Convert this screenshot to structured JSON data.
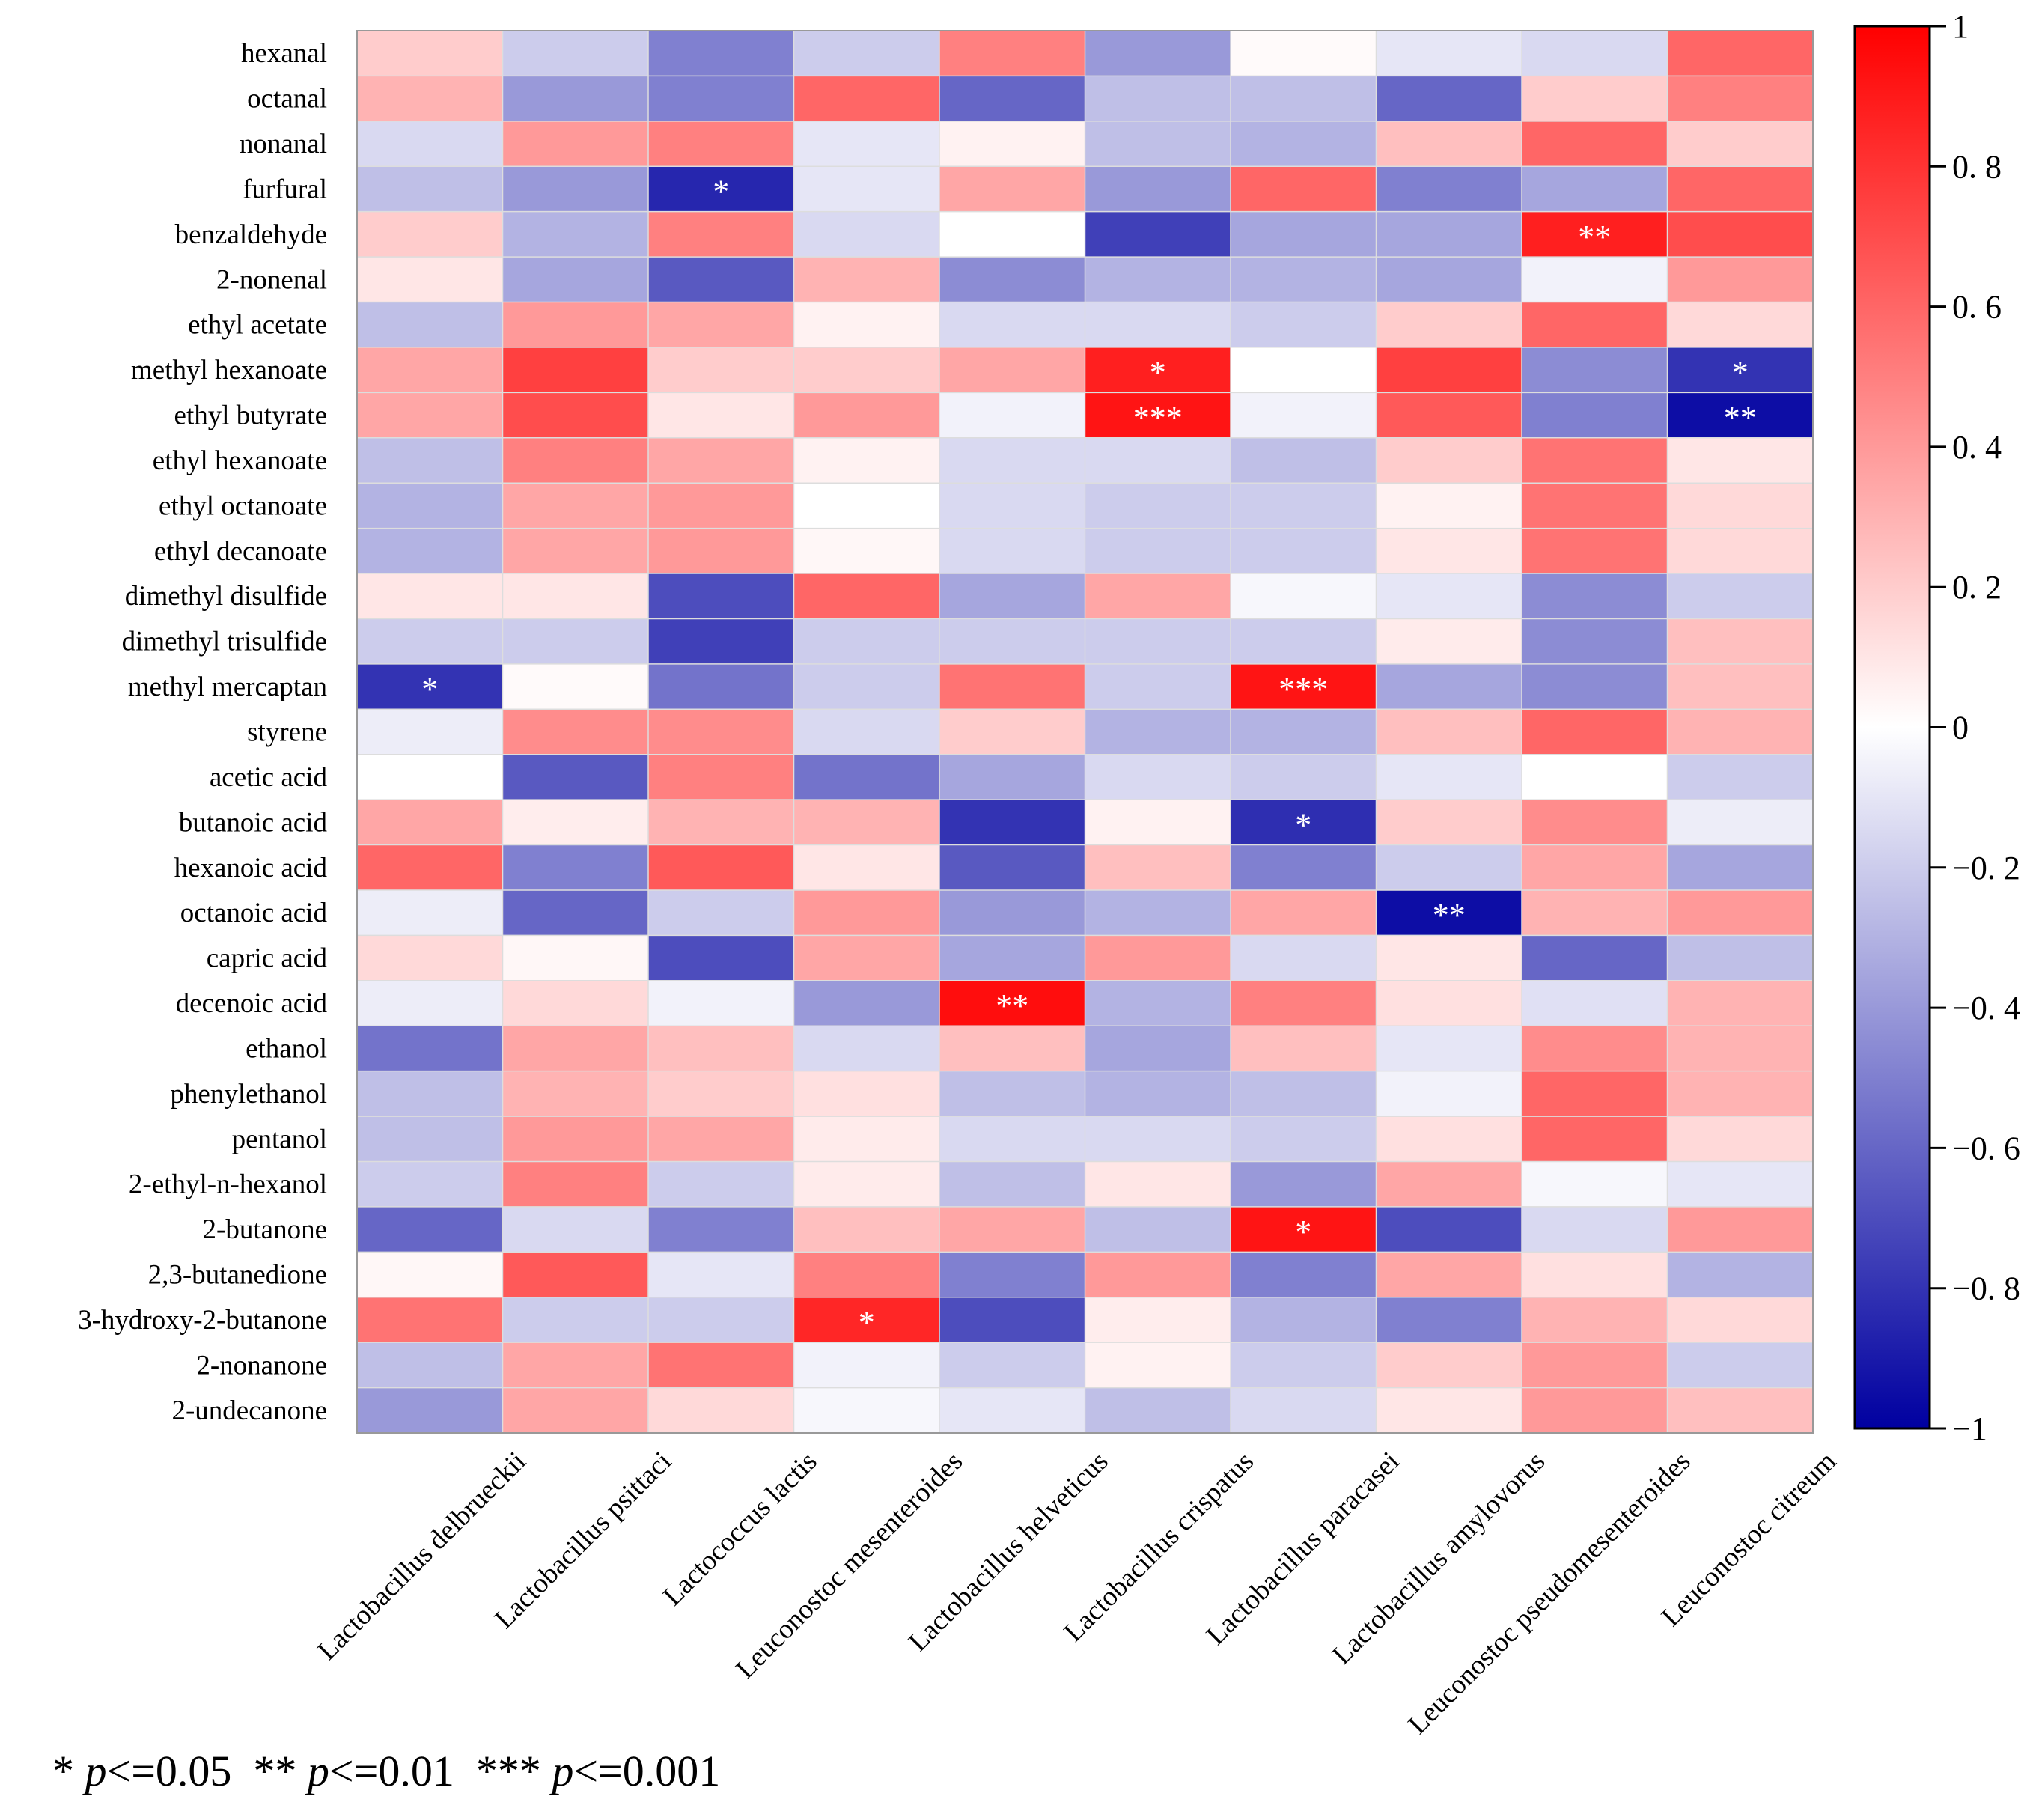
{
  "chart_data": {
    "type": "heatmap",
    "title": "",
    "columns": [
      "Lactobacillus delbrueckii",
      "Lactobacillus psittaci",
      "Lactococcus lactis",
      "Leuconostoc mesenteroides",
      "Lactobacillus helveticus",
      "Lactobacillus crispatus",
      "Lactobacillus paracasei",
      "Lactobacillus amylovorus",
      "Leuconostoc pseudomesenteroides",
      "Leuconostoc citreum"
    ],
    "rows": [
      "hexanal",
      "octanal",
      "nonanal",
      "furfural",
      "benzaldehyde",
      "2-nonenal",
      "ethyl acetate",
      "methyl hexanoate",
      "ethyl butyrate",
      "ethyl hexanoate",
      "ethyl octanoate",
      "ethyl decanoate",
      "dimethyl disulfide",
      "dimethyl trisulfide",
      "methyl mercaptan",
      "styrene",
      "acetic acid",
      "butanoic acid",
      "hexanoic acid",
      "octanoic acid",
      "capric acid",
      "decenoic acid",
      "ethanol",
      "phenylethanol",
      "pentanol",
      "2-ethyl-n-hexanol",
      "2-butanone",
      "2,3-butanedione",
      "3-hydroxy-2-butanone",
      "2-nonanone",
      "2-undecanone"
    ],
    "values": [
      [
        0.2,
        -0.2,
        -0.5,
        -0.2,
        0.5,
        -0.4,
        0.02,
        -0.1,
        -0.15,
        0.6
      ],
      [
        0.3,
        -0.4,
        -0.5,
        0.6,
        -0.6,
        -0.25,
        -0.25,
        -0.6,
        0.2,
        0.5
      ],
      [
        -0.15,
        0.4,
        0.5,
        -0.1,
        0.05,
        -0.25,
        -0.3,
        0.25,
        0.6,
        0.2
      ],
      [
        -0.25,
        -0.4,
        -0.85,
        -0.1,
        0.35,
        -0.4,
        0.6,
        -0.5,
        -0.35,
        0.6
      ],
      [
        0.2,
        -0.3,
        0.5,
        -0.15,
        0.0,
        -0.75,
        -0.35,
        -0.35,
        0.88,
        0.7
      ],
      [
        0.1,
        -0.35,
        -0.65,
        0.3,
        -0.45,
        -0.3,
        -0.3,
        -0.35,
        -0.05,
        0.4
      ],
      [
        -0.25,
        0.4,
        0.35,
        0.05,
        -0.15,
        -0.15,
        -0.2,
        0.2,
        0.6,
        0.15
      ],
      [
        0.35,
        0.75,
        0.2,
        0.2,
        0.35,
        0.88,
        0.0,
        0.75,
        -0.45,
        -0.8
      ],
      [
        0.35,
        0.7,
        0.1,
        0.4,
        -0.05,
        0.92,
        -0.05,
        0.65,
        -0.5,
        -0.95
      ],
      [
        -0.25,
        0.5,
        0.35,
        0.05,
        -0.15,
        -0.15,
        -0.25,
        0.2,
        0.55,
        0.1
      ],
      [
        -0.3,
        0.35,
        0.4,
        0.0,
        -0.15,
        -0.2,
        -0.2,
        0.05,
        0.55,
        0.15
      ],
      [
        -0.3,
        0.35,
        0.4,
        0.03,
        -0.15,
        -0.2,
        -0.2,
        0.1,
        0.55,
        0.15
      ],
      [
        0.1,
        0.1,
        -0.7,
        0.6,
        -0.35,
        0.35,
        -0.03,
        -0.1,
        -0.45,
        -0.2
      ],
      [
        -0.2,
        -0.2,
        -0.75,
        -0.2,
        -0.2,
        -0.2,
        -0.2,
        0.08,
        -0.45,
        0.25
      ],
      [
        -0.8,
        0.02,
        -0.55,
        -0.2,
        0.55,
        -0.2,
        0.92,
        -0.35,
        -0.45,
        0.25
      ],
      [
        -0.07,
        0.45,
        0.45,
        -0.15,
        0.2,
        -0.3,
        -0.3,
        0.25,
        0.6,
        0.3
      ],
      [
        0.0,
        -0.65,
        0.5,
        -0.55,
        -0.35,
        -0.15,
        -0.2,
        -0.1,
        0.0,
        -0.2
      ],
      [
        0.35,
        0.07,
        0.3,
        0.3,
        -0.8,
        0.05,
        -0.82,
        0.2,
        0.45,
        -0.07
      ],
      [
        0.6,
        -0.5,
        0.65,
        0.1,
        -0.65,
        0.25,
        -0.5,
        -0.2,
        0.35,
        -0.35
      ],
      [
        -0.07,
        -0.6,
        -0.2,
        0.4,
        -0.4,
        -0.3,
        0.35,
        -0.95,
        0.3,
        0.4
      ],
      [
        0.15,
        0.03,
        -0.7,
        0.35,
        -0.35,
        0.4,
        -0.15,
        0.1,
        -0.6,
        -0.25
      ],
      [
        -0.07,
        0.15,
        -0.05,
        -0.4,
        0.95,
        -0.3,
        0.5,
        0.12,
        -0.12,
        0.3
      ],
      [
        -0.55,
        0.35,
        0.25,
        -0.15,
        0.25,
        -0.35,
        0.25,
        -0.1,
        0.45,
        0.3
      ],
      [
        -0.25,
        0.3,
        0.2,
        0.12,
        -0.25,
        -0.3,
        -0.25,
        -0.05,
        0.6,
        0.3
      ],
      [
        -0.25,
        0.4,
        0.35,
        0.08,
        -0.15,
        -0.15,
        -0.2,
        0.12,
        0.6,
        0.15
      ],
      [
        -0.2,
        0.5,
        -0.2,
        0.08,
        -0.25,
        0.1,
        -0.4,
        0.35,
        -0.03,
        -0.1
      ],
      [
        -0.6,
        -0.15,
        -0.5,
        0.25,
        0.35,
        -0.25,
        0.92,
        -0.7,
        -0.15,
        0.4
      ],
      [
        0.03,
        0.65,
        -0.1,
        0.5,
        -0.5,
        0.4,
        -0.5,
        0.35,
        0.12,
        -0.3
      ],
      [
        0.55,
        -0.2,
        -0.2,
        0.85,
        -0.7,
        0.07,
        -0.3,
        -0.5,
        0.3,
        0.15
      ],
      [
        -0.25,
        0.35,
        0.55,
        -0.05,
        -0.2,
        0.05,
        -0.2,
        0.2,
        0.4,
        -0.2
      ],
      [
        -0.4,
        0.35,
        0.15,
        -0.03,
        -0.1,
        -0.25,
        -0.15,
        0.1,
        0.4,
        0.25
      ]
    ],
    "significance": [
      {
        "row": 3,
        "col": 2,
        "mark": "*"
      },
      {
        "row": 4,
        "col": 8,
        "mark": "**"
      },
      {
        "row": 7,
        "col": 5,
        "mark": "*"
      },
      {
        "row": 7,
        "col": 9,
        "mark": "*"
      },
      {
        "row": 8,
        "col": 5,
        "mark": "***"
      },
      {
        "row": 8,
        "col": 9,
        "mark": "**"
      },
      {
        "row": 14,
        "col": 0,
        "mark": "*"
      },
      {
        "row": 14,
        "col": 6,
        "mark": "***"
      },
      {
        "row": 17,
        "col": 6,
        "mark": "*"
      },
      {
        "row": 19,
        "col": 7,
        "mark": "**"
      },
      {
        "row": 21,
        "col": 4,
        "mark": "**"
      },
      {
        "row": 26,
        "col": 6,
        "mark": "*"
      },
      {
        "row": 28,
        "col": 3,
        "mark": "*"
      }
    ],
    "colorbar": {
      "range": [
        -1,
        1
      ],
      "ticks": [
        1,
        0.8,
        0.6,
        0.4,
        0.2,
        0,
        -0.2,
        -0.4,
        -0.6,
        -0.8,
        -1
      ],
      "tick_labels": [
        "1",
        "0. 8",
        "0. 6",
        "0. 4",
        "0. 2",
        "0",
        "−0. 2",
        "−0. 4",
        "−0. 6",
        "−0. 8",
        "−1"
      ],
      "colors": {
        "low": "#0000a0",
        "mid": "#ffffff",
        "high": "#ff0000"
      }
    },
    "legend_note": {
      "items": [
        {
          "stars": "*",
          "p": "p",
          "threshold": "<=0.05"
        },
        {
          "stars": "**",
          "p": "p",
          "threshold": "<=0.01"
        },
        {
          "stars": "***",
          "p": "p",
          "threshold": "<=0.001"
        }
      ]
    }
  }
}
